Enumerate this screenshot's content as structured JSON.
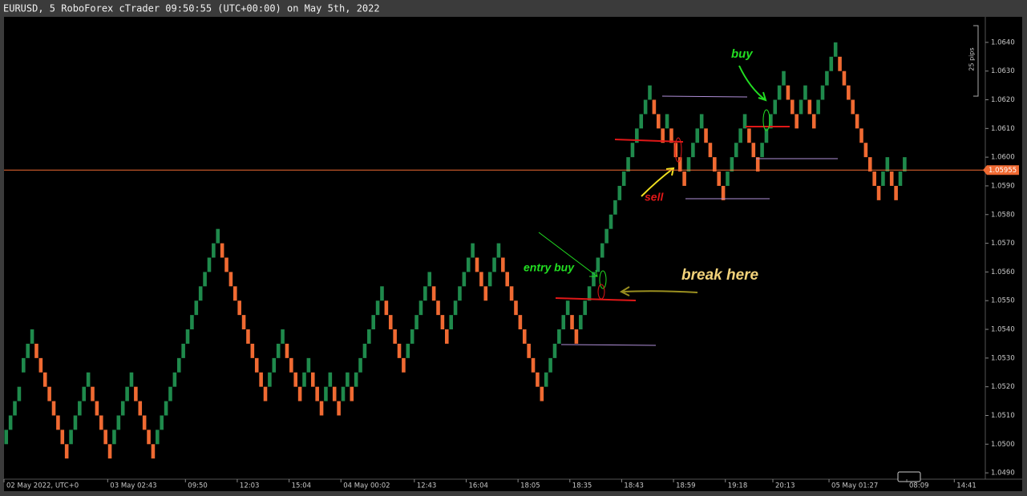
{
  "chart_data": {
    "type": "renko",
    "title": "EURUSD, 5 RoboForex cTrader 09:50:55 (UTC+00:00) on May 5th, 2022",
    "brick_size": 0.0005,
    "up_color": "#1f8a4c",
    "down_color": "#f06a32",
    "values": [
      1.0505,
      1.051,
      1.0515,
      1.052,
      1.053,
      1.0535,
      1.054,
      1.053,
      1.0525,
      1.052,
      1.0515,
      1.051,
      1.0505,
      1.05,
      1.0495,
      1.0505,
      1.051,
      1.0515,
      1.052,
      1.0525,
      1.0515,
      1.051,
      1.0505,
      1.05,
      1.0495,
      1.0505,
      1.051,
      1.0515,
      1.052,
      1.0525,
      1.0515,
      1.051,
      1.0505,
      1.05,
      1.0495,
      1.0505,
      1.051,
      1.0515,
      1.052,
      1.0525,
      1.053,
      1.0535,
      1.054,
      1.0545,
      1.055,
      1.0555,
      1.056,
      1.0565,
      1.057,
      1.0575,
      1.0565,
      1.056,
      1.0555,
      1.055,
      1.0545,
      1.054,
      1.0535,
      1.053,
      1.0525,
      1.052,
      1.0515,
      1.0525,
      1.053,
      1.0535,
      1.054,
      1.053,
      1.0525,
      1.052,
      1.0515,
      1.0525,
      1.053,
      1.052,
      1.0515,
      1.051,
      1.052,
      1.0525,
      1.0515,
      1.051,
      1.052,
      1.0525,
      1.0515,
      1.0525,
      1.053,
      1.0535,
      1.054,
      1.0545,
      1.055,
      1.0555,
      1.0545,
      1.054,
      1.0535,
      1.053,
      1.0525,
      1.0535,
      1.054,
      1.0545,
      1.055,
      1.0555,
      1.056,
      1.055,
      1.0545,
      1.054,
      1.0535,
      1.0545,
      1.055,
      1.0555,
      1.056,
      1.0565,
      1.057,
      1.056,
      1.0555,
      1.055,
      1.056,
      1.0565,
      1.057,
      1.056,
      1.0555,
      1.055,
      1.0545,
      1.054,
      1.0535,
      1.053,
      1.0525,
      1.052,
      1.0515,
      1.0525,
      1.053,
      1.0535,
      1.054,
      1.0545,
      1.055,
      1.054,
      1.0535,
      1.0545,
      1.055,
      1.0555,
      1.056,
      1.0565,
      1.057,
      1.0575,
      1.058,
      1.0585,
      1.059,
      1.0595,
      1.06,
      1.0605,
      1.061,
      1.0615,
      1.062,
      1.0625,
      1.0615,
      1.061,
      1.0605,
      1.0615,
      1.0605,
      1.06,
      1.0595,
      1.059,
      1.06,
      1.0605,
      1.061,
      1.0615,
      1.0605,
      1.06,
      1.0595,
      1.059,
      1.0585,
      1.0595,
      1.06,
      1.0605,
      1.061,
      1.0615,
      1.0605,
      1.06,
      1.0595,
      1.0605,
      1.061,
      1.0615,
      1.062,
      1.0625,
      1.063,
      1.062,
      1.0615,
      1.061,
      1.062,
      1.0625,
      1.0615,
      1.061,
      1.062,
      1.0625,
      1.063,
      1.0635,
      1.064,
      1.063,
      1.0625,
      1.062,
      1.0615,
      1.061,
      1.0605,
      1.06,
      1.0595,
      1.059,
      1.0585,
      1.0595,
      1.06,
      1.059,
      1.0585,
      1.0595,
      1.06
    ],
    "xlim": [
      0,
      227
    ],
    "xticks": [
      {
        "value": 0,
        "label": "02 May 2022, UTC+0"
      },
      {
        "value": 24,
        "label": "03 May 02:43"
      },
      {
        "value": 42,
        "label": "09:50"
      },
      {
        "value": 54,
        "label": "12:03"
      },
      {
        "value": 66,
        "label": "15:04"
      },
      {
        "value": 78,
        "label": "04 May 00:02"
      },
      {
        "value": 95,
        "label": "12:43"
      },
      {
        "value": 107,
        "label": "16:04"
      },
      {
        "value": 119,
        "label": "18:05"
      },
      {
        "value": 131,
        "label": "18:35"
      },
      {
        "value": 143,
        "label": "18:43"
      },
      {
        "value": 155,
        "label": "18:59"
      },
      {
        "value": 167,
        "label": "19:18"
      },
      {
        "value": 178,
        "label": "20:13"
      },
      {
        "value": 191,
        "label": "05 May 01:27"
      },
      {
        "value": 209,
        "label": "08:09"
      },
      {
        "value": 220,
        "label": "14:41"
      }
    ],
    "ylim": [
      1.04878,
      1.06489
    ],
    "yticks": [
      {
        "value": 1.049,
        "label": "1.0490"
      },
      {
        "value": 1.05,
        "label": "1.0500"
      },
      {
        "value": 1.051,
        "label": "1.0510"
      },
      {
        "value": 1.052,
        "label": "1.0520"
      },
      {
        "value": 1.053,
        "label": "1.0530"
      },
      {
        "value": 1.054,
        "label": "1.0540"
      },
      {
        "value": 1.055,
        "label": "1.0550"
      },
      {
        "value": 1.056,
        "label": "1.0560"
      },
      {
        "value": 1.057,
        "label": "1.0570"
      },
      {
        "value": 1.058,
        "label": "1.0580"
      },
      {
        "value": 1.059,
        "label": "1.0590"
      },
      {
        "value": 1.06,
        "label": "1.0600"
      },
      {
        "value": 1.061,
        "label": "1.0610"
      },
      {
        "value": 1.062,
        "label": "1.0620"
      },
      {
        "value": 1.063,
        "label": "1.0630"
      },
      {
        "value": 1.064,
        "label": "1.0640"
      }
    ],
    "current_price": 1.05955,
    "scale_label": "25 pips",
    "annotations": [
      "buy",
      "sell",
      "entry buy",
      "break here"
    ]
  }
}
